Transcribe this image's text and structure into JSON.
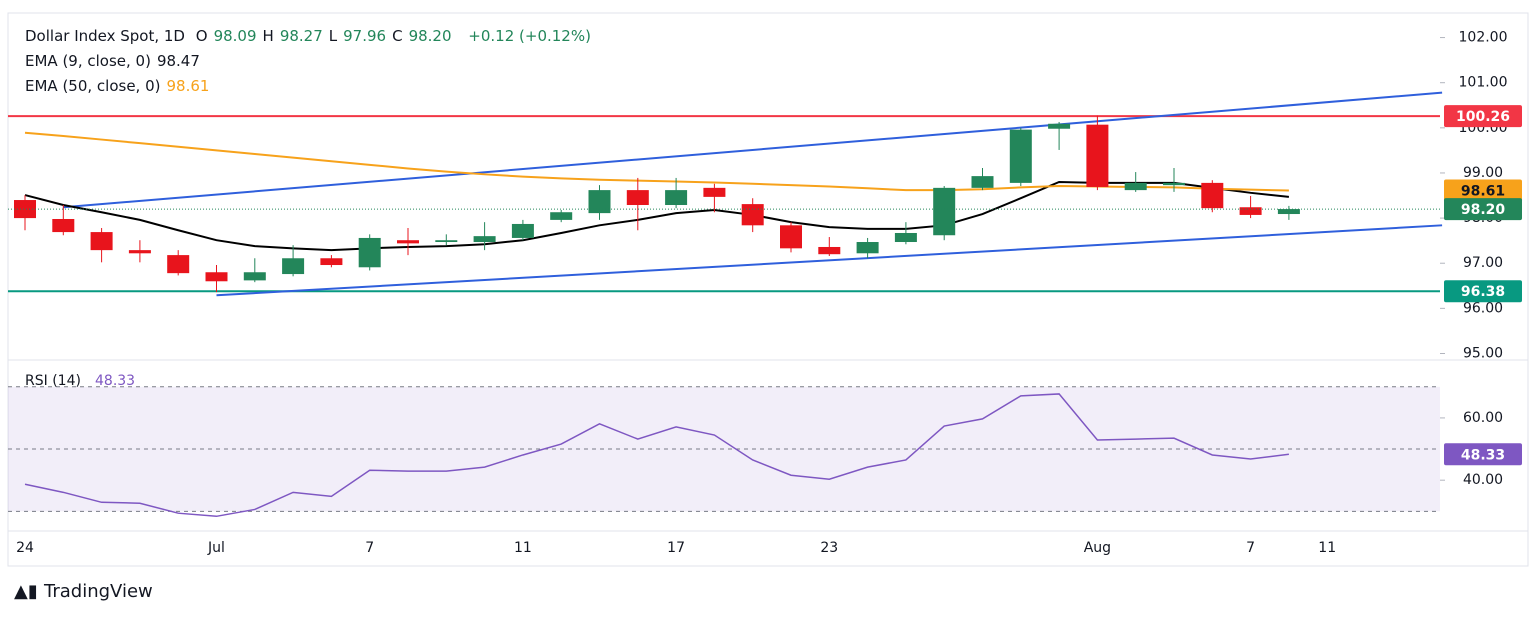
{
  "chart_data": [
    {
      "type": "candlestick",
      "header": {
        "title": "Dollar Index Spot, 1D",
        "ohlc": [
          {
            "key": "O",
            "value": "98.09"
          },
          {
            "key": "H",
            "value": "98.27"
          },
          {
            "key": "L",
            "value": "97.96"
          },
          {
            "key": "C",
            "value": "98.20"
          }
        ],
        "change": "+0.12 (+0.12%)"
      },
      "categories": [
        "24",
        null,
        null,
        null,
        null,
        "Jul",
        null,
        null,
        null,
        "7",
        null,
        null,
        null,
        "11",
        null,
        null,
        null,
        "17",
        null,
        null,
        null,
        "23",
        null,
        null,
        null,
        null,
        null,
        null,
        "Aug",
        null,
        null,
        null,
        "7",
        null,
        "11"
      ],
      "candles": {
        "up_color": "#23865a",
        "down_color": "#e8141c",
        "open": [
          98.4,
          97.98,
          97.69,
          97.29,
          97.18,
          96.8,
          96.62,
          96.76,
          97.11,
          96.91,
          97.51,
          97.47,
          97.47,
          97.56,
          97.96,
          98.11,
          98.62,
          98.29,
          98.67,
          98.31,
          97.84,
          97.36,
          97.22,
          97.47,
          97.62,
          98.67,
          98.78,
          99.98,
          100.07,
          98.62,
          98.73,
          98.78,
          98.24,
          98.09,
          null
        ],
        "high": [
          98.51,
          98.29,
          97.78,
          97.51,
          97.29,
          96.96,
          97.11,
          97.4,
          97.18,
          97.64,
          97.78,
          97.64,
          97.91,
          97.96,
          98.18,
          98.73,
          98.89,
          98.89,
          98.76,
          98.44,
          97.91,
          97.58,
          97.56,
          97.91,
          98.71,
          99.11,
          100.0,
          100.13,
          100.27,
          99.02,
          99.11,
          98.84,
          98.49,
          98.27,
          null
        ],
        "low": [
          97.73,
          97.62,
          97.02,
          97.02,
          96.73,
          96.36,
          96.58,
          96.71,
          96.91,
          96.84,
          97.18,
          97.4,
          97.29,
          97.51,
          97.91,
          97.96,
          97.73,
          98.22,
          98.13,
          97.69,
          97.24,
          97.16,
          97.11,
          97.42,
          97.51,
          98.62,
          98.71,
          99.51,
          98.62,
          98.58,
          98.58,
          98.13,
          98.0,
          97.96,
          null
        ],
        "close": [
          98.0,
          97.69,
          97.29,
          97.22,
          96.78,
          96.6,
          96.8,
          97.11,
          96.96,
          97.56,
          97.44,
          97.51,
          97.6,
          97.87,
          98.13,
          98.62,
          98.29,
          98.62,
          98.47,
          97.84,
          97.33,
          97.2,
          97.47,
          97.67,
          98.67,
          98.93,
          99.96,
          100.09,
          98.69,
          98.78,
          98.78,
          98.22,
          98.07,
          98.2,
          null
        ]
      },
      "series": [
        {
          "name": "EMA (9, close, 0)",
          "color": "#000000",
          "last_label": "98.47",
          "values": [
            98.51,
            98.29,
            98.13,
            97.96,
            97.73,
            97.51,
            97.38,
            97.33,
            97.29,
            97.33,
            97.36,
            97.38,
            97.42,
            97.51,
            97.67,
            97.84,
            97.96,
            98.11,
            98.18,
            98.07,
            97.91,
            97.8,
            97.76,
            97.76,
            97.84,
            98.09,
            98.44,
            98.8,
            98.78,
            98.78,
            98.78,
            98.67,
            98.56,
            98.47,
            null
          ]
        },
        {
          "name": "EMA (50, close, 0)",
          "color": "#f7a21b",
          "last_label": "98.61",
          "values": [
            99.89,
            99.82,
            99.74,
            99.66,
            99.58,
            99.5,
            99.42,
            99.34,
            99.26,
            99.18,
            99.1,
            99.03,
            98.97,
            98.92,
            98.88,
            98.85,
            98.83,
            98.81,
            98.79,
            98.76,
            98.73,
            98.7,
            98.66,
            98.62,
            98.62,
            98.64,
            98.68,
            98.71,
            98.7,
            98.69,
            98.68,
            98.65,
            98.63,
            98.61,
            null
          ]
        }
      ],
      "trend_lines": [
        {
          "color": "#2f5fdc",
          "x": [
            1,
            37
          ],
          "y": [
            98.24,
            100.78
          ]
        },
        {
          "color": "#2f5fdc",
          "x": [
            5,
            37
          ],
          "y": [
            96.29,
            97.84
          ]
        }
      ],
      "levels": [
        {
          "value": 100.26,
          "label": "100.26",
          "color": "#f23645"
        },
        {
          "value": 96.38,
          "label": "96.38",
          "color": "#089981"
        }
      ],
      "ylim": [
        94.9,
        102.5
      ],
      "yticks": [
        {
          "value": 95,
          "label": "95.00"
        },
        {
          "value": 96,
          "label": "96.00"
        },
        {
          "value": 97,
          "label": "97.00"
        },
        {
          "value": 98,
          "label": "98.00"
        },
        {
          "value": 99,
          "label": "99.00"
        },
        {
          "value": 100,
          "label": "100.00"
        },
        {
          "value": 101,
          "label": "101.00"
        },
        {
          "value": 102,
          "label": "102.00"
        }
      ]
    },
    {
      "type": "line",
      "series": [
        {
          "name": "RSI (14)",
          "color": "#7e57c2",
          "last_label": "48.33",
          "values": [
            38.7,
            36.1,
            32.9,
            32.6,
            29.4,
            28.4,
            30.6,
            36.1,
            34.8,
            43.2,
            42.9,
            42.9,
            44.2,
            48.1,
            51.6,
            58.1,
            53.2,
            57.1,
            54.5,
            46.5,
            41.6,
            40.3,
            44.2,
            46.5,
            57.4,
            59.7,
            67.1,
            67.7,
            52.9,
            53.2,
            53.5,
            48.1,
            46.8,
            48.33,
            null
          ]
        }
      ],
      "bands": [
        30,
        50,
        70
      ],
      "ylim": [
        24,
        77
      ],
      "yticks": [
        {
          "value": 40,
          "label": "40.00"
        },
        {
          "value": 60,
          "label": "60.00"
        }
      ]
    }
  ],
  "footer": {
    "logo": "TradingView"
  }
}
